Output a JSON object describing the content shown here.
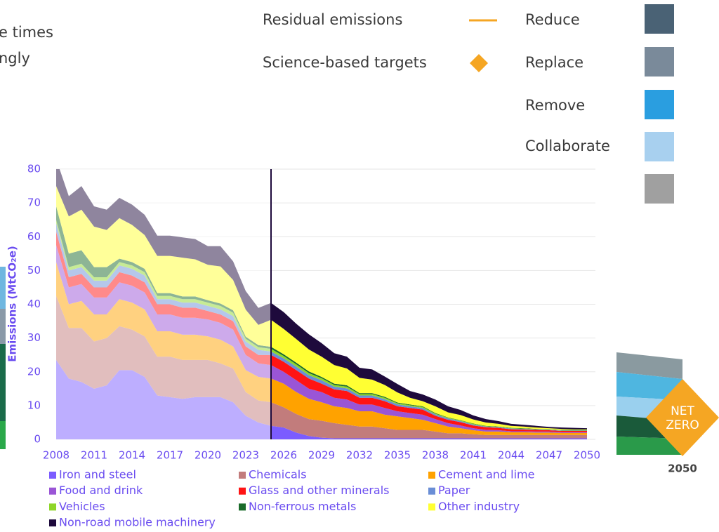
{
  "overlay": {
    "left_text": [
      "e times",
      "ngly"
    ],
    "legend_items": [
      "Residual emissions",
      "Science-based targets"
    ],
    "levers": [
      "Reduce",
      "Replace",
      "Remove",
      "Collaborate"
    ],
    "badge": [
      "NET",
      "ZERO"
    ],
    "badge_year": "2050"
  },
  "chart_data": {
    "type": "stacked-area",
    "y_label": "Emissions (MtCO₂e)",
    "x": [
      2008,
      2009,
      2010,
      2011,
      2012,
      2013,
      2014,
      2015,
      2016,
      2017,
      2018,
      2019,
      2020,
      2021,
      2022,
      2023,
      2024,
      2025,
      2026,
      2027,
      2028,
      2029,
      2030,
      2031,
      2032,
      2033,
      2034,
      2035,
      2036,
      2037,
      2038,
      2039,
      2040,
      2041,
      2042,
      2043,
      2044,
      2045,
      2046,
      2047,
      2048,
      2049,
      2050
    ],
    "xlim": [
      2008,
      2050
    ],
    "xticks": [
      2008,
      2011,
      2014,
      2017,
      2020,
      2023,
      2026,
      2029,
      2032,
      2035,
      2038,
      2041,
      2044,
      2047,
      2050
    ],
    "ylim": [
      0,
      80
    ],
    "yticks": [
      0,
      10,
      20,
      30,
      40,
      50,
      60,
      70,
      80
    ],
    "grid": true,
    "legend": "bottom",
    "divider_x": 2025,
    "series": [
      {
        "name": "Iron and steel",
        "color": "#7b5cff",
        "values": [
          23.5,
          18,
          17,
          15,
          16,
          20.5,
          20.5,
          18.5,
          13,
          12.5,
          12,
          12.5,
          12.5,
          12.5,
          11,
          7,
          5,
          4,
          3.5,
          2,
          1,
          0.5,
          0.3,
          0.3,
          0.3,
          0.3,
          0.3,
          0.3,
          0.3,
          0.3,
          0.3,
          0.3,
          0.3,
          0.3,
          0.3,
          0.3,
          0.3,
          0.3,
          0.3,
          0.3,
          0.3,
          0.3,
          0.3
        ]
      },
      {
        "name": "Chemicals",
        "color": "#c27c7c",
        "values": [
          19,
          15,
          16,
          14,
          14,
          13,
          12,
          12,
          11.5,
          12,
          11.5,
          11,
          11,
          10,
          10,
          7,
          6.5,
          7,
          6,
          5.5,
          5,
          5,
          4.5,
          4,
          3.5,
          3.5,
          3,
          2.5,
          2.5,
          2.5,
          2,
          1.5,
          1.5,
          1.2,
          1,
          1,
          1,
          1,
          1,
          1,
          1,
          1,
          1
        ]
      },
      {
        "name": "Cement and lime",
        "color": "#ffa200",
        "values": [
          10,
          7,
          8,
          8,
          7,
          8,
          8,
          8,
          7.5,
          7.5,
          7.5,
          7.5,
          7,
          7,
          6.5,
          6.5,
          7,
          7,
          7,
          6.5,
          6,
          5.5,
          5,
          5,
          4.5,
          4.5,
          4,
          4,
          3.5,
          3,
          2.5,
          2,
          1.5,
          1.2,
          1,
          1,
          0.8,
          0.8,
          0.7,
          0.7,
          0.6,
          0.6,
          0.6
        ]
      },
      {
        "name": "Food and drink",
        "color": "#9a55d6",
        "values": [
          5,
          5,
          5,
          5,
          5,
          5,
          5,
          5,
          5,
          5,
          5,
          5,
          5,
          5,
          5,
          4.5,
          4,
          4,
          3.5,
          3.5,
          3,
          3,
          2.5,
          2.5,
          2,
          2,
          2,
          1.5,
          1.5,
          1.5,
          1.2,
          1,
          0.8,
          0.6,
          0.5,
          0.4,
          0.3,
          0.3,
          0.3,
          0.3,
          0.2,
          0.2,
          0.2
        ]
      },
      {
        "name": "Glass and other minerals",
        "color": "#ff1414",
        "values": [
          4,
          3,
          3,
          3,
          3,
          3,
          3,
          3,
          3,
          3,
          3,
          3,
          2.5,
          2.5,
          2.5,
          2.5,
          2.5,
          3,
          3,
          3,
          3,
          2.5,
          2.5,
          2.5,
          2,
          2,
          2,
          1.5,
          1.5,
          1.5,
          1,
          1,
          1,
          0.8,
          0.8,
          0.7,
          0.6,
          0.5,
          0.5,
          0.4,
          0.4,
          0.4,
          0.4
        ]
      },
      {
        "name": "Paper",
        "color": "#6a8ed6",
        "values": [
          2.5,
          2,
          2,
          2,
          2,
          2,
          2,
          2,
          1.5,
          1.5,
          1.5,
          1.5,
          1.5,
          1.5,
          1.5,
          1.5,
          1.5,
          1,
          1,
          1,
          1,
          1,
          0.8,
          0.8,
          0.7,
          0.7,
          0.6,
          0.6,
          0.5,
          0.5,
          0.4,
          0.4,
          0.3,
          0.3,
          0.2,
          0.2,
          0.2,
          0.2,
          0.1,
          0.1,
          0.1,
          0.1,
          0.1
        ]
      },
      {
        "name": "Vehicles",
        "color": "#8fd62a",
        "values": [
          1,
          1,
          1,
          1,
          1,
          1,
          1,
          1,
          1,
          1,
          1,
          1,
          1,
          1,
          1,
          0.8,
          0.8,
          0.8,
          0.7,
          0.7,
          0.6,
          0.6,
          0.5,
          0.5,
          0.4,
          0.4,
          0.4,
          0.3,
          0.3,
          0.3,
          0.2,
          0.2,
          0.2,
          0.2,
          0.1,
          0.1,
          0.1,
          0.1,
          0.1,
          0.1,
          0.1,
          0.1,
          0.1
        ]
      },
      {
        "name": "Non-ferrous metals",
        "color": "#1a6b2a",
        "values": [
          4,
          4,
          4,
          3,
          3,
          1,
          1,
          1,
          0.8,
          0.8,
          0.8,
          0.8,
          0.7,
          0.7,
          0.7,
          0.6,
          0.6,
          0.6,
          0.5,
          0.5,
          0.5,
          0.4,
          0.4,
          0.4,
          0.3,
          0.3,
          0.3,
          0.2,
          0.2,
          0.2,
          0.2,
          0.1,
          0.1,
          0.1,
          0.1,
          0.1,
          0.1,
          0.1,
          0.1,
          0.1,
          0.1,
          0.1,
          0.1
        ]
      },
      {
        "name": "Other industry",
        "color": "#ffff33",
        "values": [
          6,
          11,
          12,
          12,
          11,
          12,
          11,
          10,
          11,
          11,
          11.5,
          11,
          10.5,
          11,
          9,
          8,
          6,
          8,
          7.5,
          7,
          6.5,
          6,
          5.5,
          5,
          4.5,
          4,
          3.5,
          3,
          2,
          1.5,
          2,
          1.5,
          1.5,
          1.2,
          1,
          0.8,
          0.6,
          0.5,
          0.4,
          0.3,
          0.3,
          0.2,
          0.2
        ]
      },
      {
        "name": "Non-road mobile machinery",
        "color": "#1e0a3c",
        "values": [
          8,
          6,
          7,
          6,
          6,
          6,
          6,
          6,
          6,
          6,
          6,
          6,
          5.5,
          6,
          5.5,
          5.5,
          5,
          5,
          5,
          4.5,
          4.5,
          4,
          3.5,
          3.5,
          3,
          3,
          2.5,
          2.5,
          2,
          2,
          2,
          1.8,
          1.5,
          1.2,
          1,
          0.8,
          0.6,
          0.5,
          0.5,
          0.4,
          0.4,
          0.4,
          0.3
        ]
      }
    ]
  }
}
